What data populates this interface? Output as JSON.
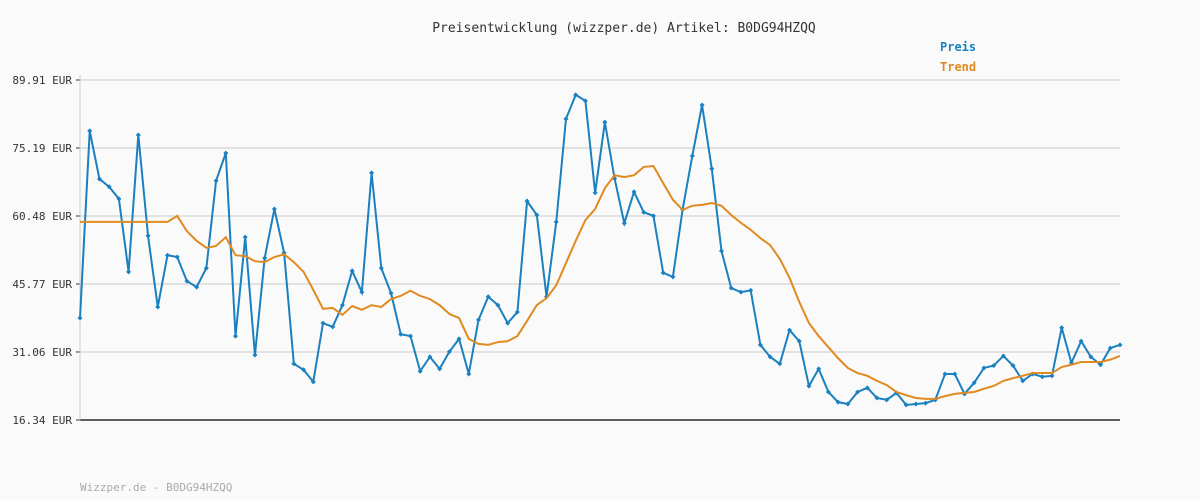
{
  "chart_data": {
    "type": "line",
    "title": "Preisentwicklung (wizzper.de) Artikel: B0DG94HZQQ",
    "ylim": [
      16.34,
      89.91
    ],
    "yticks": [
      {
        "value": 16.34,
        "label": "16.34 EUR"
      },
      {
        "value": 31.06,
        "label": "31.06 EUR"
      },
      {
        "value": 45.77,
        "label": "45.77 EUR"
      },
      {
        "value": 60.48,
        "label": "60.48 EUR"
      },
      {
        "value": 75.19,
        "label": "75.19 EUR"
      },
      {
        "value": 89.91,
        "label": "89.91 EUR"
      }
    ],
    "grid": true,
    "legend": "top-right",
    "series": [
      {
        "name": "Preis",
        "color": "#1a80c0",
        "markers": true,
        "values": [
          38.4,
          78.9,
          68.5,
          66.8,
          64.2,
          48.4,
          78.0,
          56.2,
          40.8,
          52.0,
          51.6,
          46.4,
          45.1,
          49.2,
          68.1,
          74.1,
          34.5,
          55.9,
          30.4,
          51.4,
          62.0,
          52.5,
          28.5,
          27.2,
          24.6,
          37.3,
          36.5,
          41.2,
          48.6,
          44.0,
          69.8,
          49.2,
          43.8,
          34.9,
          34.5,
          26.9,
          30.0,
          27.4,
          31.1,
          33.9,
          26.3,
          38.0,
          43.0,
          41.2,
          37.3,
          39.7,
          63.7,
          60.7,
          43.0,
          59.2,
          81.5,
          86.7,
          85.4,
          65.5,
          80.8,
          68.6,
          58.9,
          65.7,
          61.3,
          60.5,
          48.2,
          47.3,
          61.9,
          73.5,
          84.5,
          70.7,
          52.9,
          44.9,
          44.0,
          44.4,
          32.6,
          30.0,
          28.5,
          35.8,
          33.4,
          23.7,
          27.4,
          22.4,
          20.2,
          19.8,
          22.4,
          23.3,
          21.1,
          20.7,
          22.2,
          19.6,
          19.8,
          20.0,
          20.7,
          26.3,
          26.3,
          22.0,
          24.4,
          27.6,
          28.1,
          30.2,
          28.1,
          24.8,
          26.3,
          25.7,
          25.9,
          36.3,
          28.7,
          33.4,
          30.0,
          28.3,
          31.9,
          32.6
        ]
      },
      {
        "name": "Trend",
        "color": "#e08a20",
        "markers": false,
        "values": [
          59.2,
          59.2,
          59.2,
          59.2,
          59.2,
          59.2,
          59.2,
          59.2,
          59.2,
          59.2,
          60.5,
          57.2,
          55.1,
          53.6,
          54.0,
          55.9,
          52.0,
          51.8,
          50.7,
          50.5,
          51.6,
          52.2,
          50.5,
          48.4,
          44.5,
          40.4,
          40.6,
          39.1,
          41.0,
          40.2,
          41.2,
          40.8,
          42.5,
          43.2,
          44.3,
          43.2,
          42.5,
          41.2,
          39.3,
          38.4,
          33.9,
          32.8,
          32.6,
          33.2,
          33.4,
          34.5,
          37.8,
          41.2,
          42.7,
          45.5,
          50.3,
          55.1,
          59.6,
          62.0,
          66.5,
          69.3,
          68.9,
          69.3,
          71.1,
          71.3,
          67.6,
          64.0,
          61.8,
          62.7,
          62.9,
          63.3,
          62.7,
          60.7,
          59.0,
          57.5,
          55.7,
          54.2,
          51.2,
          47.1,
          41.9,
          37.3,
          34.5,
          32.1,
          29.7,
          27.6,
          26.5,
          25.9,
          24.8,
          23.9,
          22.4,
          21.7,
          21.1,
          20.9,
          20.9,
          21.5,
          22.0,
          22.2,
          22.4,
          23.1,
          23.7,
          24.8,
          25.4,
          25.9,
          26.5,
          26.5,
          26.5,
          27.8,
          28.3,
          28.9,
          28.9,
          28.9,
          29.4,
          30.2
        ]
      }
    ]
  },
  "footer": "Wizzper.de - B0DG94HZQQ"
}
